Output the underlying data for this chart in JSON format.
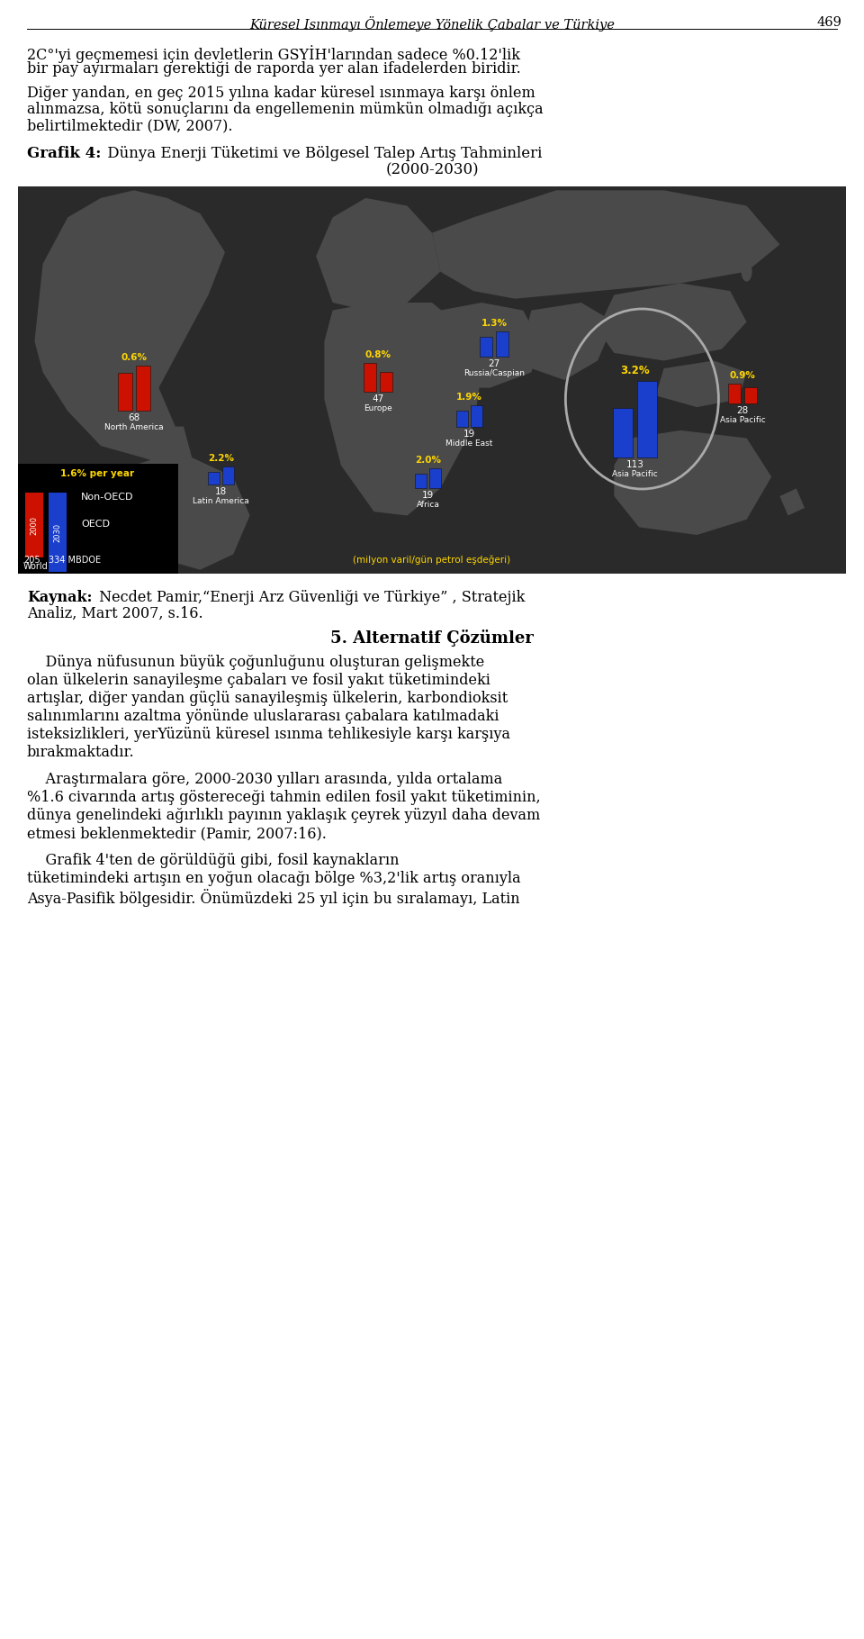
{
  "page_title": "Küresel Isınmayı Önlemeye Yönelik Çabalar ve Türkiye",
  "page_number": "469",
  "background_color": "#ffffff",
  "map_bg": "#2a2a2a",
  "continent_color": "#4a4a4a",
  "bar_red": "#cc1100",
  "bar_blue": "#1a3fcc",
  "legend_bg": "#000000",
  "text_gold": "#ffd700",
  "text_white": "#ffffff",
  "header_fontsize": 11,
  "body_fontsize": 11.5,
  "title_fontsize": 12.5,
  "para1_line1": "2C°'yi geçmemesi için devletlerin GSYİH'larından sadece %0.12'lik",
  "para1_line2": "bir pay ayırmaları gerektiği de raporda yer alan ifadelerden biridir.",
  "para2_line1": "Diğer yandan, en geç 2015 yılına kadar küresel ısınmaya karşı önlem",
  "para2_line2": "alınmazsa, kötü sonuçlarını da engellemenin mümkün olmadığı açıkça",
  "para2_line3": "belirtilmektedir (DW, 2007).",
  "grafik_bold": "Grafik 4:",
  "grafik_rest": " Dünya Enerji Tüketimi ve Bölgesel Talep Artış Tahminleri",
  "grafik_line2": "(2000-2030)",
  "kaynak_bold": "Kaynak:",
  "kaynak_rest": " Necdet Pamir,“Enerji Arz Güvenliği ve Türkiye” , Stratejik",
  "kaynak_line2": "Analiz, Mart 2007, s.16.",
  "section_title": "5. Alternatif Çözümler",
  "para3": "    Dünya nüfusunun büyük çoğunluğunu oluşturan gelişmekte\nolan ülkelerin sanayileşme çabaları ve fosil yakıt tüketimindeki\nartışlar, diğer yandan güçlü sanayileşmiş ülkelerin, karbondioksit\nsalınımlarını azaltma yönünde uluslararası çabalara katılmadaki\nisteksizlikleri, yerYüzünü küresel ısınma tehlikesiyle karşı karşıya\nbırakmaktadır.",
  "para4": "    Araştırmalara göre, 2000-2030 yılları arasında, yılda ortalama\n%1.6 civarında artış göstereceği tahmin edilen fosil yakıt tüketiminin,\ndünya genelindeki ağırlıklı payının yaklaşık çeyrek yüzyıl daha devam\netmesi beklenmektedir (Pamir, 2007:16).",
  "para5": "    Grafik 4'ten de görüldüğü gibi, fosil kaynakların\ntüketimindeki artışın en yoğun olacağı bölge %3,2'lik artış oranıyla\nAsya-Pasifik bölgesidir. Önümüzdeki 25 yıl için bu sıralamayı, Latin"
}
